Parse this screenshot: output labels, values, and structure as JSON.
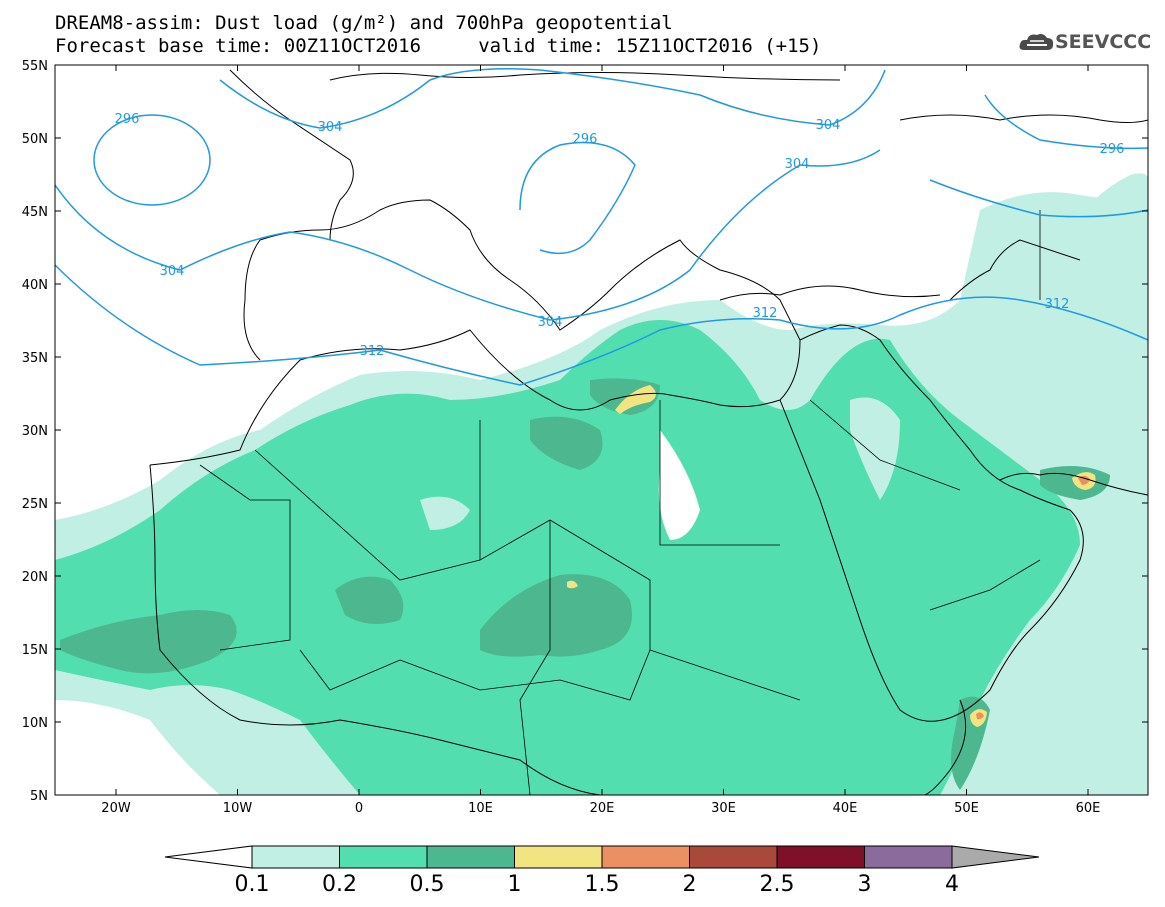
{
  "title": {
    "line1": "DREAM8-assim: Dust load (g/m²) and 700hPa geopotential",
    "line2": "Forecast base time: 00Z11OCT2016     valid time: 15Z11OCT2016 (+15)"
  },
  "logo": {
    "text": "SEEVCCC",
    "icon": "cloud-icon"
  },
  "lat_ticks": [
    "55N",
    "50N",
    "45N",
    "40N",
    "35N",
    "30N",
    "25N",
    "20N",
    "15N",
    "10N",
    "5N"
  ],
  "lon_ticks": [
    "20W",
    "10W",
    "0",
    "10E",
    "20E",
    "30E",
    "40E",
    "50E",
    "60E"
  ],
  "contour_labels": [
    "296",
    "304",
    "304",
    "296",
    "304",
    "296",
    "304",
    "304",
    "312",
    "312",
    "312"
  ],
  "colorbar": {
    "labels": [
      "0.1",
      "0.2",
      "0.5",
      "1",
      "1.5",
      "2",
      "2.5",
      "3",
      "4"
    ],
    "colors": [
      "#ffffff",
      "#c2efe4",
      "#53deb0",
      "#4db790",
      "#f2e581",
      "#ea9063",
      "#a8493b",
      "#800f2a",
      "#8a6b9c",
      "#aaaaaa"
    ]
  },
  "colors": {
    "contour": "#1e9ae0",
    "coast": "#000000",
    "dust_low": "#c2efe4",
    "dust_mid": "#53deb0",
    "dust_high": "#4db790",
    "dust_yellow": "#f2e581",
    "dust_orange": "#ea9063"
  }
}
